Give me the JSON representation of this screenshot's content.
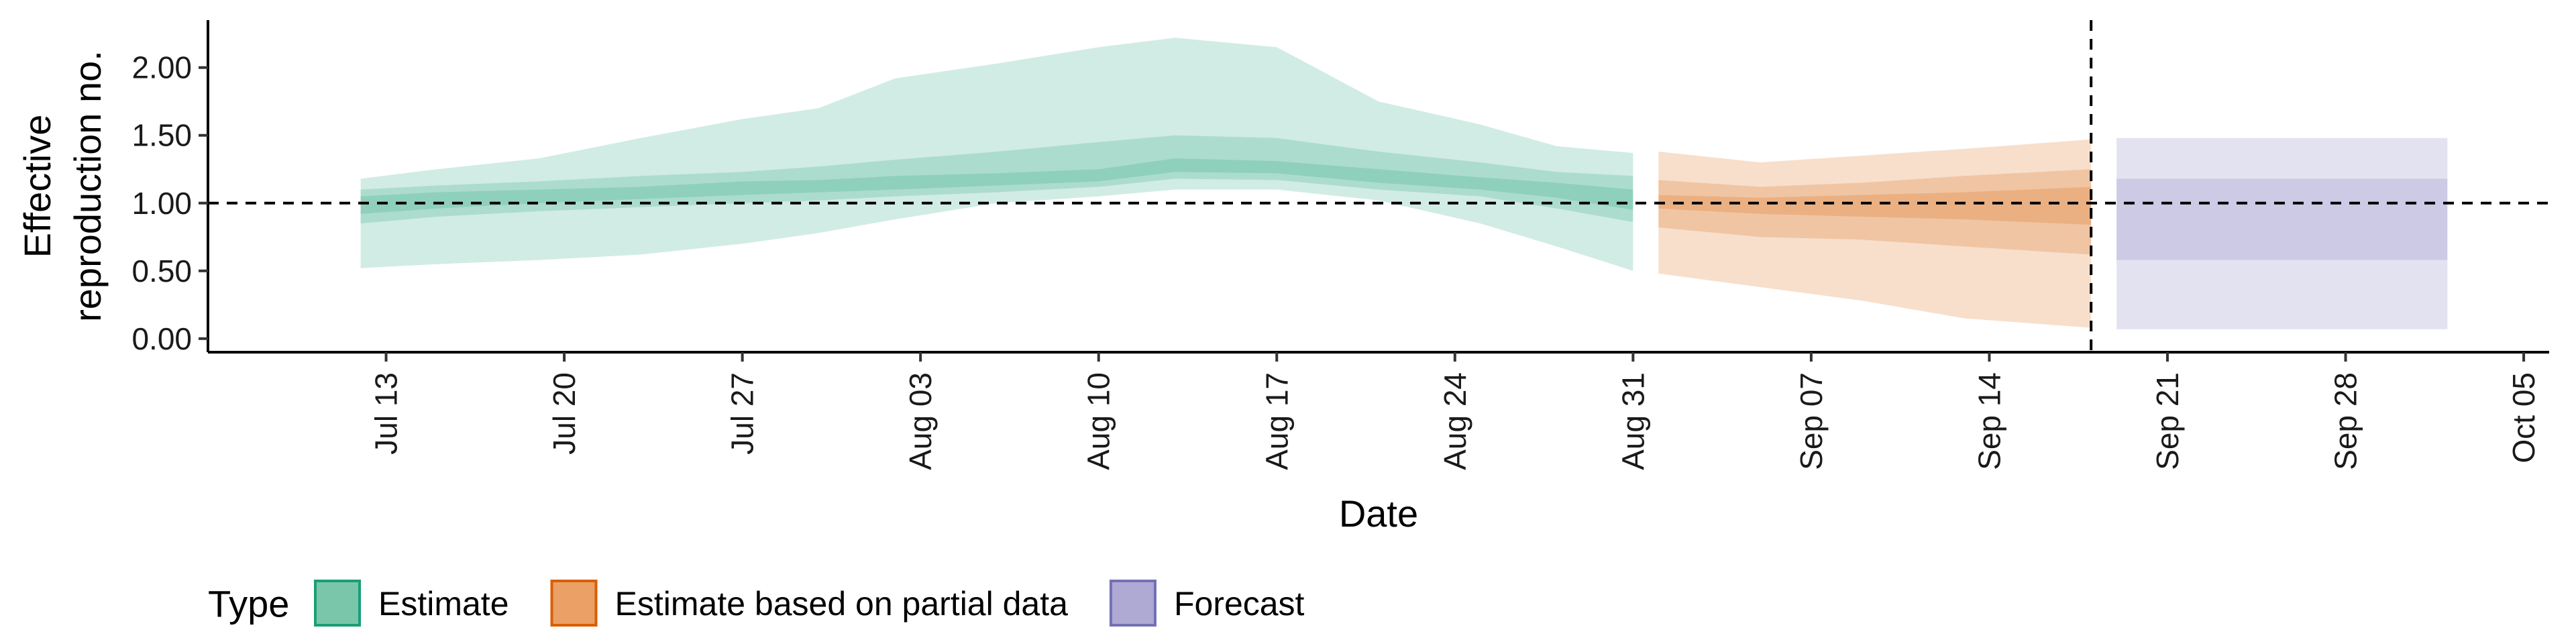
{
  "chart_data": {
    "type": "area",
    "xlabel": "Date",
    "ylabel_lines": [
      "Effective",
      "reproduction no."
    ],
    "x_ticks": [
      {
        "date": "2020-07-13",
        "label": "Jul 13"
      },
      {
        "date": "2020-07-20",
        "label": "Jul 20"
      },
      {
        "date": "2020-07-27",
        "label": "Jul 27"
      },
      {
        "date": "2020-08-03",
        "label": "Aug 03"
      },
      {
        "date": "2020-08-10",
        "label": "Aug 10"
      },
      {
        "date": "2020-08-17",
        "label": "Aug 17"
      },
      {
        "date": "2020-08-24",
        "label": "Aug 24"
      },
      {
        "date": "2020-08-31",
        "label": "Aug 31"
      },
      {
        "date": "2020-09-07",
        "label": "Sep 07"
      },
      {
        "date": "2020-09-14",
        "label": "Sep 14"
      },
      {
        "date": "2020-09-21",
        "label": "Sep 21"
      },
      {
        "date": "2020-09-28",
        "label": "Sep 28"
      },
      {
        "date": "2020-10-05",
        "label": "Oct 05"
      }
    ],
    "y_ticks": [
      {
        "value": 0,
        "label": "0.00"
      },
      {
        "value": 0.5,
        "label": "0.50"
      },
      {
        "value": 1,
        "label": "1.00"
      },
      {
        "value": 1.5,
        "label": "1.50"
      },
      {
        "value": 2,
        "label": "2.00"
      }
    ],
    "xlim": [
      "2020-07-06",
      "2020-10-06"
    ],
    "ylim": [
      -0.1,
      2.35
    ],
    "hline": 1.0,
    "vline_date": "2020-09-18",
    "grid": false,
    "legend": {
      "title": "Type",
      "position": "bottom",
      "items": [
        {
          "label": "Estimate",
          "fill": "#7ac6ab",
          "stroke": "#1b9e77"
        },
        {
          "label": "Estimate based on partial data",
          "fill": "#eba066",
          "stroke": "#d95f02"
        },
        {
          "label": "Forecast",
          "fill": "#aeaad4",
          "stroke": "#7570b3"
        }
      ]
    },
    "series": [
      {
        "name": "Estimate",
        "color": "#1b9e77",
        "points": [
          {
            "x": "2020-07-12",
            "lo90": 0.52,
            "lo50": 0.85,
            "lo20": 0.92,
            "hi20": 1.05,
            "hi50": 1.1,
            "hi90": 1.18
          },
          {
            "x": "2020-07-15",
            "lo90": 0.55,
            "lo50": 0.9,
            "lo20": 0.96,
            "hi20": 1.08,
            "hi50": 1.13,
            "hi90": 1.25
          },
          {
            "x": "2020-07-19",
            "lo90": 0.58,
            "lo50": 0.94,
            "lo20": 1.0,
            "hi20": 1.1,
            "hi50": 1.16,
            "hi90": 1.33
          },
          {
            "x": "2020-07-23",
            "lo90": 0.62,
            "lo50": 0.97,
            "lo20": 1.03,
            "hi20": 1.12,
            "hi50": 1.2,
            "hi90": 1.48
          },
          {
            "x": "2020-07-27",
            "lo90": 0.7,
            "lo50": 1.0,
            "lo20": 1.06,
            "hi20": 1.16,
            "hi50": 1.23,
            "hi90": 1.62
          },
          {
            "x": "2020-07-30",
            "lo90": 0.78,
            "lo50": 1.02,
            "lo20": 1.08,
            "hi20": 1.17,
            "hi50": 1.27,
            "hi90": 1.7
          },
          {
            "x": "2020-08-02",
            "lo90": 0.88,
            "lo50": 1.05,
            "lo20": 1.1,
            "hi20": 1.2,
            "hi50": 1.32,
            "hi90": 1.92
          },
          {
            "x": "2020-08-06",
            "lo90": 1.0,
            "lo50": 1.08,
            "lo20": 1.13,
            "hi20": 1.22,
            "hi50": 1.38,
            "hi90": 2.03
          },
          {
            "x": "2020-08-10",
            "lo90": 1.05,
            "lo50": 1.12,
            "lo20": 1.16,
            "hi20": 1.25,
            "hi50": 1.45,
            "hi90": 2.15
          },
          {
            "x": "2020-08-13",
            "lo90": 1.1,
            "lo50": 1.18,
            "lo20": 1.23,
            "hi20": 1.33,
            "hi50": 1.5,
            "hi90": 2.22
          },
          {
            "x": "2020-08-17",
            "lo90": 1.1,
            "lo50": 1.17,
            "lo20": 1.22,
            "hi20": 1.31,
            "hi50": 1.48,
            "hi90": 2.15
          },
          {
            "x": "2020-08-21",
            "lo90": 1.02,
            "lo50": 1.1,
            "lo20": 1.15,
            "hi20": 1.25,
            "hi50": 1.38,
            "hi90": 1.75
          },
          {
            "x": "2020-08-25",
            "lo90": 0.85,
            "lo50": 1.05,
            "lo20": 1.1,
            "hi20": 1.19,
            "hi50": 1.3,
            "hi90": 1.58
          },
          {
            "x": "2020-08-28",
            "lo90": 0.68,
            "lo50": 0.96,
            "lo20": 1.04,
            "hi20": 1.15,
            "hi50": 1.23,
            "hi90": 1.42
          },
          {
            "x": "2020-08-31",
            "lo90": 0.5,
            "lo50": 0.86,
            "lo20": 0.95,
            "hi20": 1.1,
            "hi50": 1.2,
            "hi90": 1.37
          }
        ]
      },
      {
        "name": "Estimate based on partial data",
        "color": "#d95f02",
        "points": [
          {
            "x": "2020-09-01",
            "lo90": 0.48,
            "lo50": 0.82,
            "lo20": 0.96,
            "hi20": 1.06,
            "hi50": 1.17,
            "hi90": 1.38
          },
          {
            "x": "2020-09-05",
            "lo90": 0.38,
            "lo50": 0.75,
            "lo20": 0.92,
            "hi20": 1.04,
            "hi50": 1.12,
            "hi90": 1.3
          },
          {
            "x": "2020-09-09",
            "lo90": 0.28,
            "lo50": 0.73,
            "lo20": 0.9,
            "hi20": 1.06,
            "hi50": 1.15,
            "hi90": 1.35
          },
          {
            "x": "2020-09-13",
            "lo90": 0.15,
            "lo50": 0.68,
            "lo20": 0.88,
            "hi20": 1.08,
            "hi50": 1.2,
            "hi90": 1.4
          },
          {
            "x": "2020-09-18",
            "lo90": 0.08,
            "lo50": 0.62,
            "lo20": 0.84,
            "hi20": 1.12,
            "hi50": 1.25,
            "hi90": 1.47
          }
        ]
      },
      {
        "name": "Forecast",
        "color": "#7570b3",
        "points": [
          {
            "x": "2020-09-19",
            "lo90": 0.07,
            "lo50": 0.58,
            "hi50": 1.18,
            "hi90": 1.48
          },
          {
            "x": "2020-10-02",
            "lo90": 0.07,
            "lo50": 0.58,
            "hi50": 1.18,
            "hi90": 1.48
          }
        ]
      }
    ]
  }
}
